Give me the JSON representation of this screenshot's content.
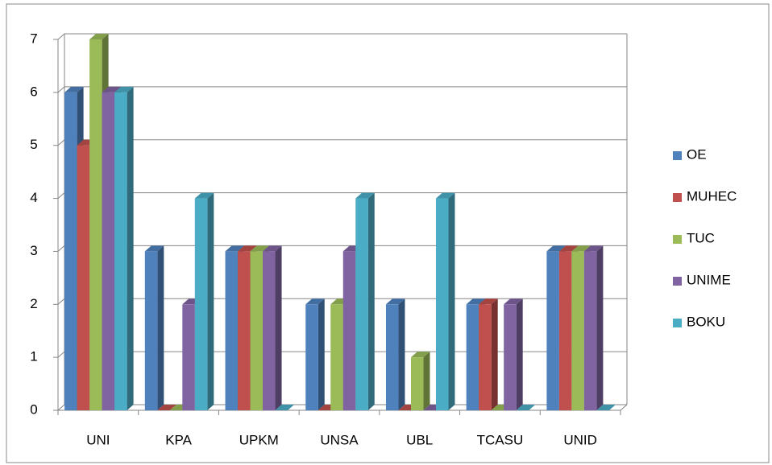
{
  "chart_data": {
    "type": "bar3d",
    "categories": [
      "UNI",
      "KPA",
      "UPKM",
      "UNSA",
      "UBL",
      "TCASU",
      "UNID"
    ],
    "series": [
      {
        "name": "OE",
        "color": "#4F81BD",
        "values": [
          6,
          3,
          3,
          2,
          2,
          2,
          3
        ]
      },
      {
        "name": "MUHEC",
        "color": "#C0504D",
        "values": [
          5,
          0,
          3,
          0,
          0,
          2,
          3
        ]
      },
      {
        "name": "TUC",
        "color": "#9BBB59",
        "values": [
          7,
          0,
          3,
          2,
          1,
          0,
          3
        ]
      },
      {
        "name": "UNIME",
        "color": "#8064A2",
        "values": [
          6,
          2,
          3,
          3,
          0,
          2,
          3
        ]
      },
      {
        "name": "BOKU",
        "color": "#4BACC6",
        "values": [
          6,
          4,
          0,
          4,
          4,
          0,
          0
        ]
      }
    ],
    "ylim": [
      0,
      7
    ],
    "yticks": [
      0,
      1,
      2,
      3,
      4,
      5,
      6,
      7
    ],
    "grid": true,
    "legend": "right"
  }
}
